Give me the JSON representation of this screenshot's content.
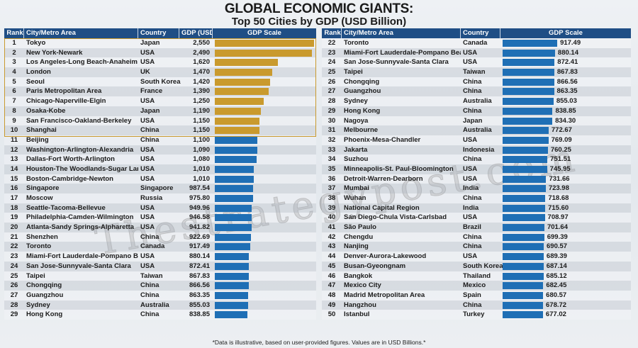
{
  "title": "GLOBAL ECONOMIC GIANTS:",
  "subtitle": "Top 50 Cities by GDP (USD Billion)",
  "footnote": "*Data is illustrative, based on user-provided figures. Values are in USD Billions.*",
  "watermark": "Thestrategypost.com",
  "colors": {
    "header": "#1f4e85",
    "top10_bar": "#c99a2e",
    "bar": "#1f6fb5"
  },
  "left_table": {
    "headers": {
      "rank": "Rank",
      "city": "City/Metro Area",
      "country": "Country",
      "gdp": "GDP (USD",
      "scale": "GDP Scale"
    }
  },
  "right_table": {
    "headers": {
      "rank": "Rank",
      "city": "City/Metro Area",
      "country": "Country",
      "scale": "GDP Scale"
    }
  },
  "chart_data": {
    "type": "bar",
    "title": "GLOBAL ECONOMIC GIANTS: Top 50 Cities by GDP (USD Billion)",
    "unit": "USD Billion",
    "left_rows": [
      {
        "rank": "1",
        "city": "Tokyo",
        "country": "Japan",
        "gdp": "2,550",
        "value": 2550
      },
      {
        "rank": "2",
        "city": "New York-Newark",
        "country": "USA",
        "gdp": "2,490",
        "value": 2490
      },
      {
        "rank": "3",
        "city": "Los Angeles-Long Beach-Anaheim",
        "country": "USA",
        "gdp": "1,620",
        "value": 1620
      },
      {
        "rank": "4",
        "city": "London",
        "country": "UK",
        "gdp": "1,470",
        "value": 1470
      },
      {
        "rank": "5",
        "city": "Seoul",
        "country": "South Korea",
        "gdp": "1,420",
        "value": 1420
      },
      {
        "rank": "6",
        "city": "Paris Metropolitan Area",
        "country": "France",
        "gdp": "1,390",
        "value": 1390
      },
      {
        "rank": "7",
        "city": "Chicago-Naperville-Elgin",
        "country": "USA",
        "gdp": "1,250",
        "value": 1250
      },
      {
        "rank": "8",
        "city": "Osaka-Kobe",
        "country": "Japan",
        "gdp": "1,190",
        "value": 1190
      },
      {
        "rank": "9",
        "city": "San Francisco-Oakland-Berkeley",
        "country": "USA",
        "gdp": "1,150",
        "value": 1150
      },
      {
        "rank": "10",
        "city": "Shanghai",
        "country": "China",
        "gdp": "1,150",
        "value": 1150
      },
      {
        "rank": "11",
        "city": "Beijing",
        "country": "China",
        "gdp": "1,100",
        "value": 1100
      },
      {
        "rank": "12",
        "city": "Washington-Arlington-Alexandria",
        "country": "USA",
        "gdp": "1,090",
        "value": 1090
      },
      {
        "rank": "13",
        "city": "Dallas-Fort Worth-Arlington",
        "country": "USA",
        "gdp": "1,080",
        "value": 1080
      },
      {
        "rank": "14",
        "city": "Houston-The Woodlands-Sugar Land",
        "country": "USA",
        "gdp": "1,010",
        "value": 1010
      },
      {
        "rank": "15",
        "city": "Boston-Cambridge-Newton",
        "country": "USA",
        "gdp": "1,010",
        "value": 1010
      },
      {
        "rank": "16",
        "city": "Singapore",
        "country": "Singapore",
        "gdp": "987.54",
        "value": 987.54
      },
      {
        "rank": "17",
        "city": "Moscow",
        "country": "Russia",
        "gdp": "975.80",
        "value": 975.8
      },
      {
        "rank": "18",
        "city": "Seattle-Tacoma-Bellevue",
        "country": "USA",
        "gdp": "949.96",
        "value": 949.96
      },
      {
        "rank": "19",
        "city": "Philadelphia-Camden-Wilmington",
        "country": "USA",
        "gdp": "946.58",
        "value": 946.58
      },
      {
        "rank": "20",
        "city": "Atlanta-Sandy Springs-Alpharetta",
        "country": "USA",
        "gdp": "941.82",
        "value": 941.82
      },
      {
        "rank": "21",
        "city": "Shenzhen",
        "country": "China",
        "gdp": "922.69",
        "value": 922.69
      },
      {
        "rank": "22",
        "city": "Toronto",
        "country": "Canada",
        "gdp": "917.49",
        "value": 917.49
      },
      {
        "rank": "23",
        "city": "Miami-Fort Lauderdale-Pompano Beach",
        "country": "USA",
        "gdp": "880.14",
        "value": 880.14
      },
      {
        "rank": "24",
        "city": "San Jose-Sunnyvale-Santa Clara",
        "country": "USA",
        "gdp": "872.41",
        "value": 872.41
      },
      {
        "rank": "25",
        "city": "Taipei",
        "country": "Taiwan",
        "gdp": "867.83",
        "value": 867.83
      },
      {
        "rank": "26",
        "city": "Chongqing",
        "country": "China",
        "gdp": "866.56",
        "value": 866.56
      },
      {
        "rank": "27",
        "city": "Guangzhou",
        "country": "China",
        "gdp": "863.35",
        "value": 863.35
      },
      {
        "rank": "28",
        "city": "Sydney",
        "country": "Australia",
        "gdp": "855.03",
        "value": 855.03
      },
      {
        "rank": "29",
        "city": "Hong Kong",
        "country": "China",
        "gdp": "838.85",
        "value": 838.85
      }
    ],
    "right_rows": [
      {
        "rank": "22",
        "city": "Toronto",
        "country": "Canada",
        "gdp": "917.49",
        "value": 917.49
      },
      {
        "rank": "23",
        "city": "Miami-Fort Lauderdale-Pompano Beach",
        "country": "USA",
        "gdp": "880.14",
        "value": 880.14
      },
      {
        "rank": "24",
        "city": "San Jose-Sunnyvale-Santa Clara",
        "country": "USA",
        "gdp": "872.41",
        "value": 872.41
      },
      {
        "rank": "25",
        "city": "Taipei",
        "country": "Taiwan",
        "gdp": "867.83",
        "value": 867.83
      },
      {
        "rank": "26",
        "city": "Chongqing",
        "country": "China",
        "gdp": "866.56",
        "value": 866.56
      },
      {
        "rank": "27",
        "city": "Guangzhou",
        "country": "China",
        "gdp": "863.35",
        "value": 863.35
      },
      {
        "rank": "28",
        "city": "Sydney",
        "country": "Australia",
        "gdp": "855.03",
        "value": 855.03
      },
      {
        "rank": "29",
        "city": "Hong Kong",
        "country": "China",
        "gdp": "838.85",
        "value": 838.85
      },
      {
        "rank": "30",
        "city": "Nagoya",
        "country": "Japan",
        "gdp": "834.30",
        "value": 834.3
      },
      {
        "rank": "31",
        "city": "Melbourne",
        "country": "Australia",
        "gdp": "772.67",
        "value": 772.67
      },
      {
        "rank": "32",
        "city": "Phoenix-Mesa-Chandler",
        "country": "USA",
        "gdp": "769.09",
        "value": 769.09
      },
      {
        "rank": "33",
        "city": "Jakarta",
        "country": "Indonesia",
        "gdp": "760.25",
        "value": 760.25
      },
      {
        "rank": "34",
        "city": "Suzhou",
        "country": "China",
        "gdp": "751.51",
        "value": 751.51
      },
      {
        "rank": "35",
        "city": "Minneapolis-St. Paul-Bloomington",
        "country": "USA",
        "gdp": "745.95",
        "value": 745.95
      },
      {
        "rank": "36",
        "city": "Detroit-Warren-Dearborn",
        "country": "USA",
        "gdp": "731.66",
        "value": 731.66
      },
      {
        "rank": "37",
        "city": "Mumbai",
        "country": "India",
        "gdp": "723.98",
        "value": 723.98
      },
      {
        "rank": "38",
        "city": "Wuhan",
        "country": "China",
        "gdp": "718.68",
        "value": 718.68
      },
      {
        "rank": "39",
        "city": "National Capital Region",
        "country": "India",
        "gdp": "715.60",
        "value": 715.6
      },
      {
        "rank": "40",
        "city": "San Diego-Chula Vista-Carlsbad",
        "country": "USA",
        "gdp": "708.97",
        "value": 708.97
      },
      {
        "rank": "41",
        "city": "São Paulo",
        "country": "Brazil",
        "gdp": "701.64",
        "value": 701.64
      },
      {
        "rank": "42",
        "city": "Chengdu",
        "country": "China",
        "gdp": "699.39",
        "value": 699.39
      },
      {
        "rank": "43",
        "city": "Nanjing",
        "country": "China",
        "gdp": "690.57",
        "value": 690.57
      },
      {
        "rank": "44",
        "city": "Denver-Aurora-Lakewood",
        "country": "USA",
        "gdp": "689.39",
        "value": 689.39
      },
      {
        "rank": "45",
        "city": "Busan-Gyeongnam",
        "country": "South Korea",
        "gdp": "687.14",
        "value": 687.14
      },
      {
        "rank": "46",
        "city": "Bangkok",
        "country": "Thailand",
        "gdp": "685.12",
        "value": 685.12
      },
      {
        "rank": "47",
        "city": "Mexico City",
        "country": "Mexico",
        "gdp": "682.45",
        "value": 682.45
      },
      {
        "rank": "48",
        "city": "Madrid Metropolitan Area",
        "country": "Spain",
        "gdp": "680.57",
        "value": 680.57
      },
      {
        "rank": "49",
        "city": "Hangzhou",
        "country": "China",
        "gdp": "678.72",
        "value": 678.72
      },
      {
        "rank": "50",
        "city": "Istanbul",
        "country": "Turkey",
        "gdp": "677.02",
        "value": 677.02
      }
    ]
  }
}
